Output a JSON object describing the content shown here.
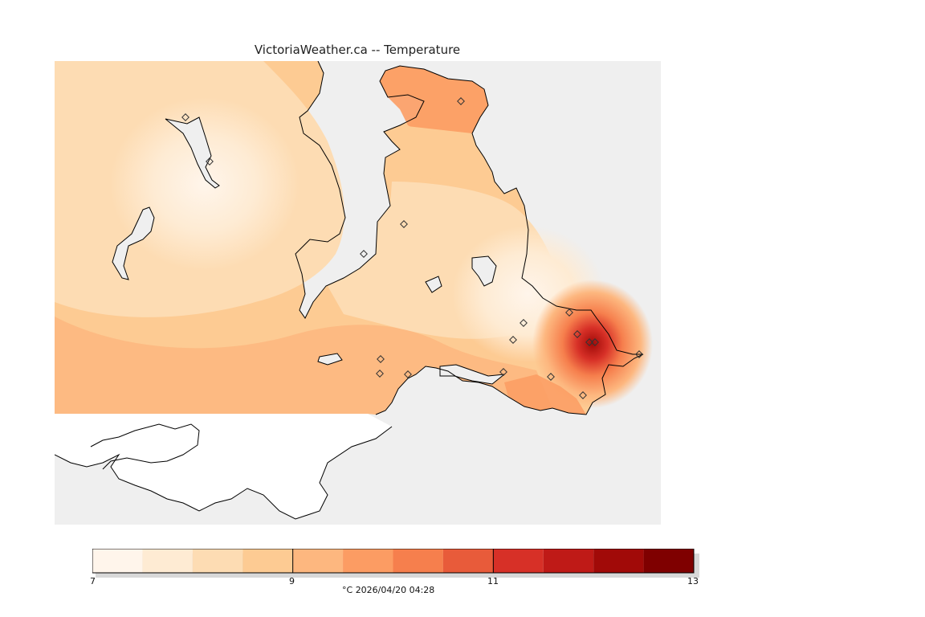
{
  "title": "VictoriaWeather.ca -- Temperature",
  "legend": {
    "unit": "°C",
    "timestamp": "2026/04/20 04:28",
    "min": 7,
    "max": 13,
    "tick_labels": [
      "7",
      "9",
      "11",
      "13"
    ],
    "bins": [
      {
        "from": 7.0,
        "to": 7.5,
        "color": "#fff5eb"
      },
      {
        "from": 7.5,
        "to": 8.0,
        "color": "#feebd3"
      },
      {
        "from": 8.0,
        "to": 8.5,
        "color": "#fddcb3"
      },
      {
        "from": 8.5,
        "to": 9.0,
        "color": "#fdcb93"
      },
      {
        "from": 9.0,
        "to": 9.5,
        "color": "#fdb77f"
      },
      {
        "from": 9.5,
        "to": 10.0,
        "color": "#fc9c63"
      },
      {
        "from": 10.0,
        "to": 10.5,
        "color": "#f67f4d"
      },
      {
        "from": 10.5,
        "to": 11.0,
        "color": "#e85b3a"
      },
      {
        "from": 11.0,
        "to": 11.5,
        "color": "#d73027"
      },
      {
        "from": 11.5,
        "to": 12.0,
        "color": "#bf1a17"
      },
      {
        "from": 12.0,
        "to": 12.5,
        "color": "#a10a08"
      },
      {
        "from": 12.5,
        "to": 13.0,
        "color": "#7f0000"
      }
    ]
  },
  "map": {
    "water_color": "#efefef",
    "outside_data_color": "#ffffff",
    "station_count": 18
  }
}
